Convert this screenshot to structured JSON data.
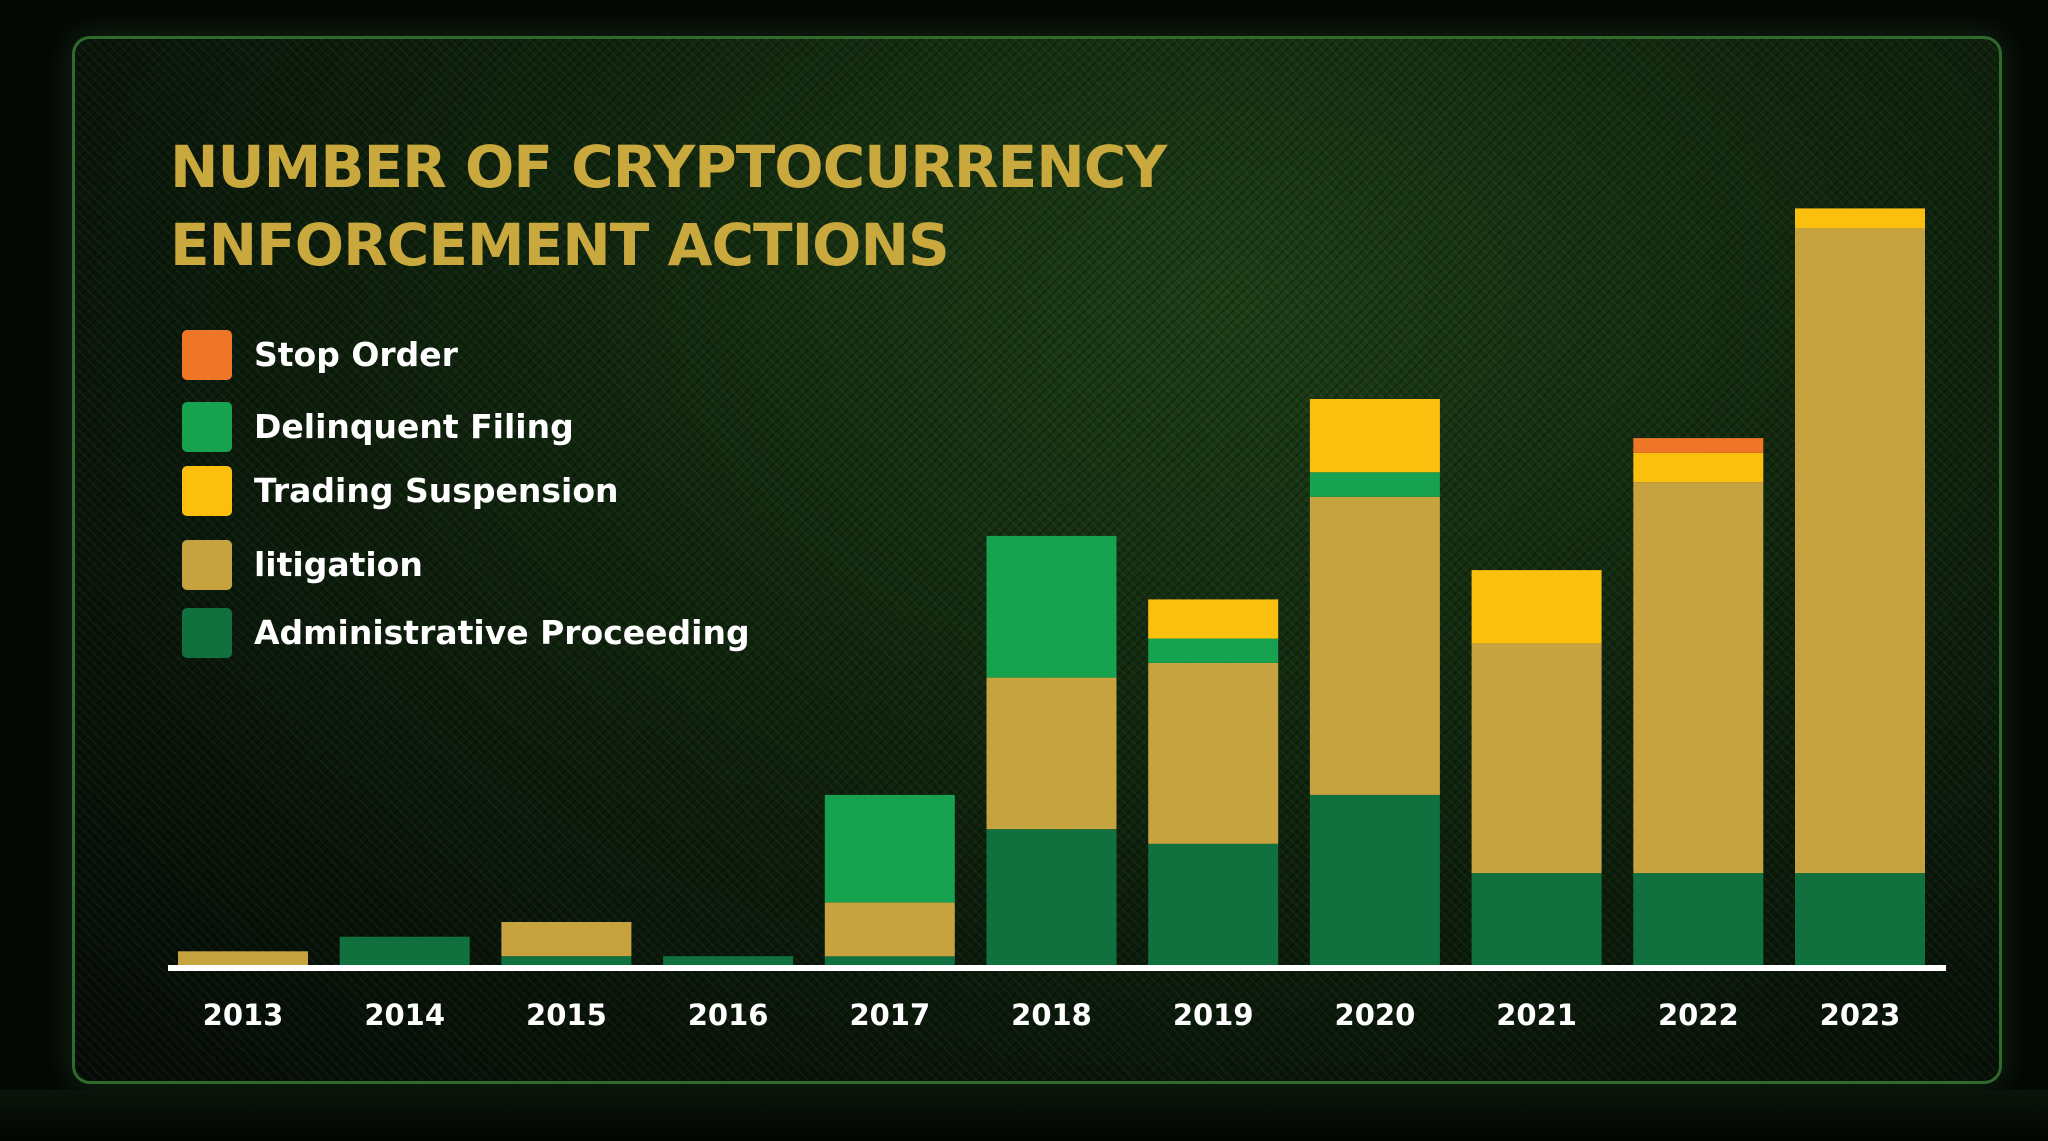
{
  "chart_data": {
    "type": "bar",
    "stacked": true,
    "title": "NUMBER OF CRYPTOCURRENCY ENFORCEMENT ACTIONS",
    "title_lines": [
      "NUMBER OF CRYPTOCURRENCY",
      "ENFORCEMENT ACTIONS"
    ],
    "categories": [
      "2013",
      "2014",
      "2015",
      "2016",
      "2017",
      "2018",
      "2019",
      "2020",
      "2021",
      "2022",
      "2023"
    ],
    "legend_order": [
      "Stop Order",
      "Delinquent Filing",
      "Trading Suspension",
      "litigation",
      "Administrative Proceeding"
    ],
    "series": [
      {
        "name": "Administrative Proceeding",
        "color": "#10713f",
        "values": [
          0,
          3,
          1,
          1,
          1,
          14,
          12.5,
          17.5,
          9.5,
          9.5,
          9.5
        ]
      },
      {
        "name": "litigation",
        "color": "#c6a33e",
        "values": [
          1.5,
          0,
          3.5,
          0,
          5.5,
          15.5,
          18.5,
          30.5,
          23.5,
          40,
          66
        ]
      },
      {
        "name": "Delinquent Filing",
        "color": "#16a24e",
        "values": [
          0,
          0,
          0,
          0,
          11,
          14.5,
          2.5,
          2.5,
          0,
          0,
          0
        ]
      },
      {
        "name": "Trading Suspension",
        "color": "#fbbf0e",
        "values": [
          0,
          0,
          0,
          0,
          0,
          0,
          4,
          7.5,
          7.5,
          3,
          2
        ]
      },
      {
        "name": "Stop Order",
        "color": "#ef7527",
        "values": [
          0,
          0,
          0,
          0,
          0,
          0,
          0,
          0,
          0,
          1.5,
          0
        ]
      }
    ],
    "ylim": [
      0,
      80
    ],
    "grid": false,
    "legend_position": "top-left"
  }
}
